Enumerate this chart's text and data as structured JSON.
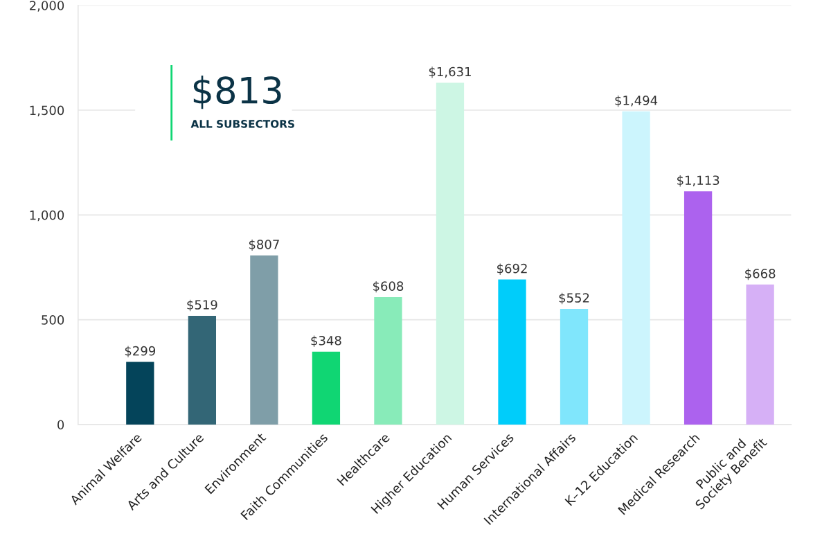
{
  "chart_data": {
    "type": "bar",
    "categories": [
      "Animal Welfare",
      "Arts and Culture",
      "Environment",
      "Faith Communities",
      "Healthcare",
      "Higher Education",
      "Human Services",
      "International Affairs",
      "K–12 Education",
      "Medical Research",
      "Public and\nSociety Benefit"
    ],
    "values": [
      299,
      519,
      807,
      348,
      608,
      1631,
      692,
      552,
      1494,
      1113,
      668
    ],
    "colors": [
      "#04445a",
      "#336676",
      "#7f9ea8",
      "#10d673",
      "#88ebb9",
      "#cdf6e4",
      "#00cdfa",
      "#80e6fc",
      "#ccf5fd",
      "#ac62ee",
      "#d6b0f6"
    ],
    "value_labels": [
      "$299",
      "$519",
      "$807",
      "$348",
      "$608",
      "$1,631",
      "$692",
      "$552",
      "$1,494",
      "$1,113",
      "$668"
    ],
    "ylim": [
      0,
      2000
    ],
    "yticks": [
      {
        "value": 0,
        "label": "0"
      },
      {
        "value": 500,
        "label": "500"
      },
      {
        "value": 1000,
        "label": "1,000"
      },
      {
        "value": 1500,
        "label": "1,500"
      },
      {
        "value": 2000,
        "label": "2,000"
      }
    ],
    "grid": "y",
    "annotations": [
      "$813",
      "ALL SUBSECTORS"
    ]
  }
}
